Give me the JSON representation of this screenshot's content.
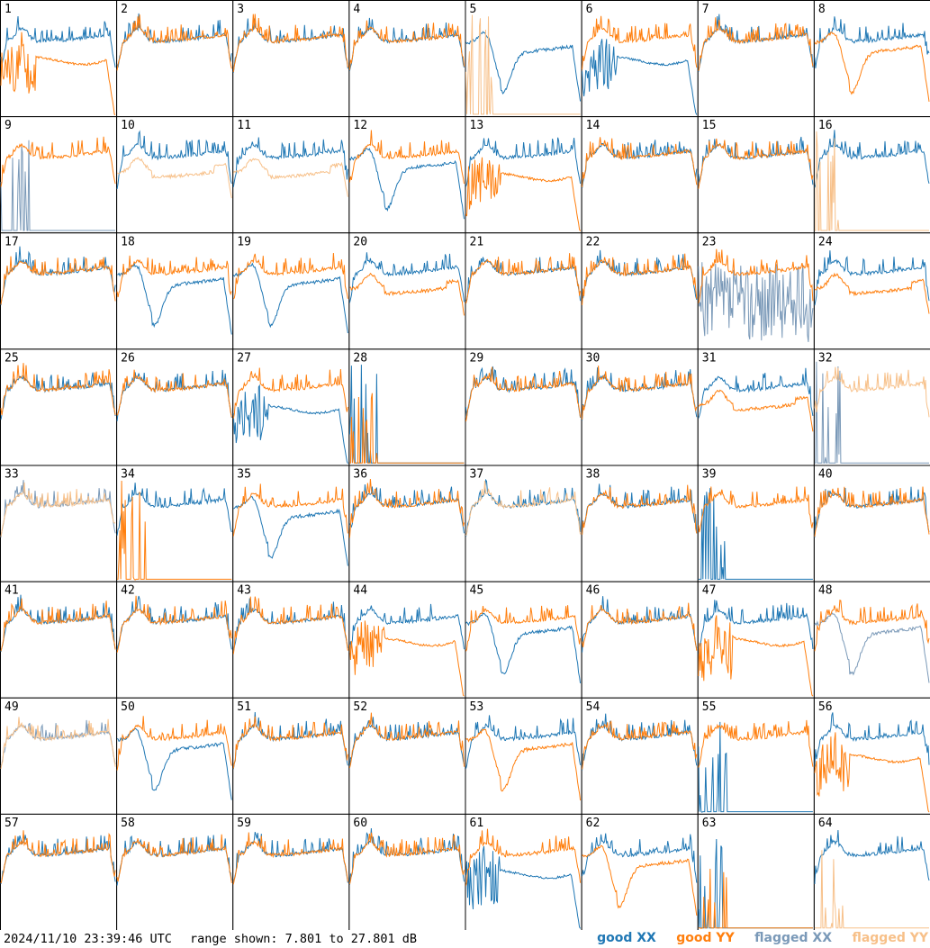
{
  "footer": {
    "timestamp": "2024/11/10 23:39:46 UTC",
    "range": "range shown: 7.801 to 27.801 dB"
  },
  "legend": [
    {
      "label": "good XX",
      "color": "#1f77b4"
    },
    {
      "label": "good YY",
      "color": "#ff7f0e"
    },
    {
      "label": "flagged XX",
      "color": "#7a99b8"
    },
    {
      "label": "flagged YY",
      "color": "#f7c089"
    }
  ],
  "chart_data": {
    "type": "line",
    "grid": "8x8 small multiples",
    "y_range_db": [
      7.801,
      27.801
    ],
    "panels": [
      {
        "id": "1",
        "xx": "good",
        "yy": "good",
        "xx_shape": "normal",
        "yy_shape": "spiky_drop"
      },
      {
        "id": "2",
        "xx": "good",
        "yy": "good",
        "xx_shape": "normal",
        "yy_shape": "normal"
      },
      {
        "id": "3",
        "xx": "good",
        "yy": "good",
        "xx_shape": "normal",
        "yy_shape": "normal"
      },
      {
        "id": "4",
        "xx": "good",
        "yy": "good",
        "xx_shape": "normal",
        "yy_shape": "normal"
      },
      {
        "id": "5",
        "xx": "good",
        "yy": "flagged",
        "xx_shape": "dip",
        "yy_shape": "dead"
      },
      {
        "id": "6",
        "xx": "good",
        "yy": "good",
        "xx_shape": "spiky_drop",
        "yy_shape": "normal"
      },
      {
        "id": "7",
        "xx": "good",
        "yy": "good",
        "xx_shape": "normal",
        "yy_shape": "normal"
      },
      {
        "id": "8",
        "xx": "good",
        "yy": "good",
        "xx_shape": "normal",
        "yy_shape": "dip"
      },
      {
        "id": "9",
        "xx": "flagged",
        "yy": "good",
        "xx_shape": "dead",
        "yy_shape": "normal"
      },
      {
        "id": "10",
        "xx": "good",
        "yy": "flagged",
        "xx_shape": "normal",
        "yy_shape": "low"
      },
      {
        "id": "11",
        "xx": "good",
        "yy": "flagged",
        "xx_shape": "normal",
        "yy_shape": "low"
      },
      {
        "id": "12",
        "xx": "good",
        "yy": "good",
        "xx_shape": "dip",
        "yy_shape": "normal"
      },
      {
        "id": "13",
        "xx": "good",
        "yy": "good",
        "xx_shape": "normal",
        "yy_shape": "spiky_drop"
      },
      {
        "id": "14",
        "xx": "good",
        "yy": "good",
        "xx_shape": "normal",
        "yy_shape": "normal"
      },
      {
        "id": "15",
        "xx": "good",
        "yy": "good",
        "xx_shape": "normal",
        "yy_shape": "normal"
      },
      {
        "id": "16",
        "xx": "good",
        "yy": "flagged",
        "xx_shape": "normal",
        "yy_shape": "dead"
      },
      {
        "id": "17",
        "xx": "good",
        "yy": "good",
        "xx_shape": "normal",
        "yy_shape": "normal"
      },
      {
        "id": "18",
        "xx": "good",
        "yy": "good",
        "xx_shape": "dip",
        "yy_shape": "normal"
      },
      {
        "id": "19",
        "xx": "good",
        "yy": "good",
        "xx_shape": "dip",
        "yy_shape": "normal"
      },
      {
        "id": "20",
        "xx": "good",
        "yy": "good",
        "xx_shape": "normal",
        "yy_shape": "low"
      },
      {
        "id": "21",
        "xx": "good",
        "yy": "good",
        "xx_shape": "normal",
        "yy_shape": "normal"
      },
      {
        "id": "22",
        "xx": "good",
        "yy": "good",
        "xx_shape": "normal",
        "yy_shape": "normal"
      },
      {
        "id": "23",
        "xx": "flagged",
        "yy": "good",
        "xx_shape": "noise",
        "yy_shape": "normal"
      },
      {
        "id": "24",
        "xx": "good",
        "yy": "good",
        "xx_shape": "normal",
        "yy_shape": "low"
      },
      {
        "id": "25",
        "xx": "good",
        "yy": "good",
        "xx_shape": "normal",
        "yy_shape": "normal"
      },
      {
        "id": "26",
        "xx": "good",
        "yy": "good",
        "xx_shape": "normal",
        "yy_shape": "normal"
      },
      {
        "id": "27",
        "xx": "good",
        "yy": "good",
        "xx_shape": "spiky_drop",
        "yy_shape": "normal"
      },
      {
        "id": "28",
        "xx": "good",
        "yy": "good",
        "xx_shape": "dead",
        "yy_shape": "dead"
      },
      {
        "id": "29",
        "xx": "good",
        "yy": "good",
        "xx_shape": "normal",
        "yy_shape": "normal"
      },
      {
        "id": "30",
        "xx": "good",
        "yy": "good",
        "xx_shape": "normal",
        "yy_shape": "normal"
      },
      {
        "id": "31",
        "xx": "good",
        "yy": "good",
        "xx_shape": "normal",
        "yy_shape": "low"
      },
      {
        "id": "32",
        "xx": "flagged",
        "yy": "flagged",
        "xx_shape": "dead",
        "yy_shape": "normal"
      },
      {
        "id": "33",
        "xx": "flagged",
        "yy": "flagged",
        "xx_shape": "normal",
        "yy_shape": "normal"
      },
      {
        "id": "34",
        "xx": "good",
        "yy": "good",
        "xx_shape": "normal",
        "yy_shape": "dead"
      },
      {
        "id": "35",
        "xx": "good",
        "yy": "good",
        "xx_shape": "dip",
        "yy_shape": "normal"
      },
      {
        "id": "36",
        "xx": "good",
        "yy": "good",
        "xx_shape": "normal",
        "yy_shape": "normal"
      },
      {
        "id": "37",
        "xx": "good",
        "yy": "flagged",
        "xx_shape": "normal",
        "yy_shape": "normal"
      },
      {
        "id": "38",
        "xx": "good",
        "yy": "good",
        "xx_shape": "normal",
        "yy_shape": "normal"
      },
      {
        "id": "39",
        "xx": "good",
        "yy": "good",
        "xx_shape": "dead",
        "yy_shape": "normal"
      },
      {
        "id": "40",
        "xx": "good",
        "yy": "good",
        "xx_shape": "normal",
        "yy_shape": "normal"
      },
      {
        "id": "41",
        "xx": "good",
        "yy": "good",
        "xx_shape": "normal",
        "yy_shape": "normal"
      },
      {
        "id": "42",
        "xx": "good",
        "yy": "good",
        "xx_shape": "normal",
        "yy_shape": "normal"
      },
      {
        "id": "43",
        "xx": "good",
        "yy": "good",
        "xx_shape": "normal",
        "yy_shape": "normal"
      },
      {
        "id": "44",
        "xx": "good",
        "yy": "good",
        "xx_shape": "normal",
        "yy_shape": "spiky_drop"
      },
      {
        "id": "45",
        "xx": "good",
        "yy": "good",
        "xx_shape": "dip",
        "yy_shape": "normal"
      },
      {
        "id": "46",
        "xx": "good",
        "yy": "good",
        "xx_shape": "normal",
        "yy_shape": "normal"
      },
      {
        "id": "47",
        "xx": "good",
        "yy": "good",
        "xx_shape": "normal",
        "yy_shape": "spiky_drop"
      },
      {
        "id": "48",
        "xx": "flagged",
        "yy": "good",
        "xx_shape": "dip",
        "yy_shape": "normal"
      },
      {
        "id": "49",
        "xx": "flagged",
        "yy": "flagged",
        "xx_shape": "normal",
        "yy_shape": "normal"
      },
      {
        "id": "50",
        "xx": "good",
        "yy": "good",
        "xx_shape": "dip",
        "yy_shape": "normal"
      },
      {
        "id": "51",
        "xx": "good",
        "yy": "good",
        "xx_shape": "normal",
        "yy_shape": "normal"
      },
      {
        "id": "52",
        "xx": "good",
        "yy": "good",
        "xx_shape": "normal",
        "yy_shape": "normal"
      },
      {
        "id": "53",
        "xx": "good",
        "yy": "good",
        "xx_shape": "normal",
        "yy_shape": "dip"
      },
      {
        "id": "54",
        "xx": "good",
        "yy": "good",
        "xx_shape": "normal",
        "yy_shape": "normal"
      },
      {
        "id": "55",
        "xx": "good",
        "yy": "good",
        "xx_shape": "dead",
        "yy_shape": "normal"
      },
      {
        "id": "56",
        "xx": "good",
        "yy": "good",
        "xx_shape": "normal",
        "yy_shape": "spiky_drop"
      },
      {
        "id": "57",
        "xx": "good",
        "yy": "good",
        "xx_shape": "normal",
        "yy_shape": "normal"
      },
      {
        "id": "58",
        "xx": "good",
        "yy": "good",
        "xx_shape": "normal",
        "yy_shape": "normal"
      },
      {
        "id": "59",
        "xx": "good",
        "yy": "good",
        "xx_shape": "normal",
        "yy_shape": "normal"
      },
      {
        "id": "60",
        "xx": "good",
        "yy": "good",
        "xx_shape": "normal",
        "yy_shape": "normal"
      },
      {
        "id": "61",
        "xx": "good",
        "yy": "good",
        "xx_shape": "spiky_drop",
        "yy_shape": "normal"
      },
      {
        "id": "62",
        "xx": "good",
        "yy": "good",
        "xx_shape": "normal",
        "yy_shape": "dip"
      },
      {
        "id": "63",
        "xx": "good",
        "yy": "good",
        "xx_shape": "dead",
        "yy_shape": "dead"
      },
      {
        "id": "64",
        "xx": "good",
        "yy": "flagged",
        "xx_shape": "normal",
        "yy_shape": "dead"
      }
    ]
  }
}
